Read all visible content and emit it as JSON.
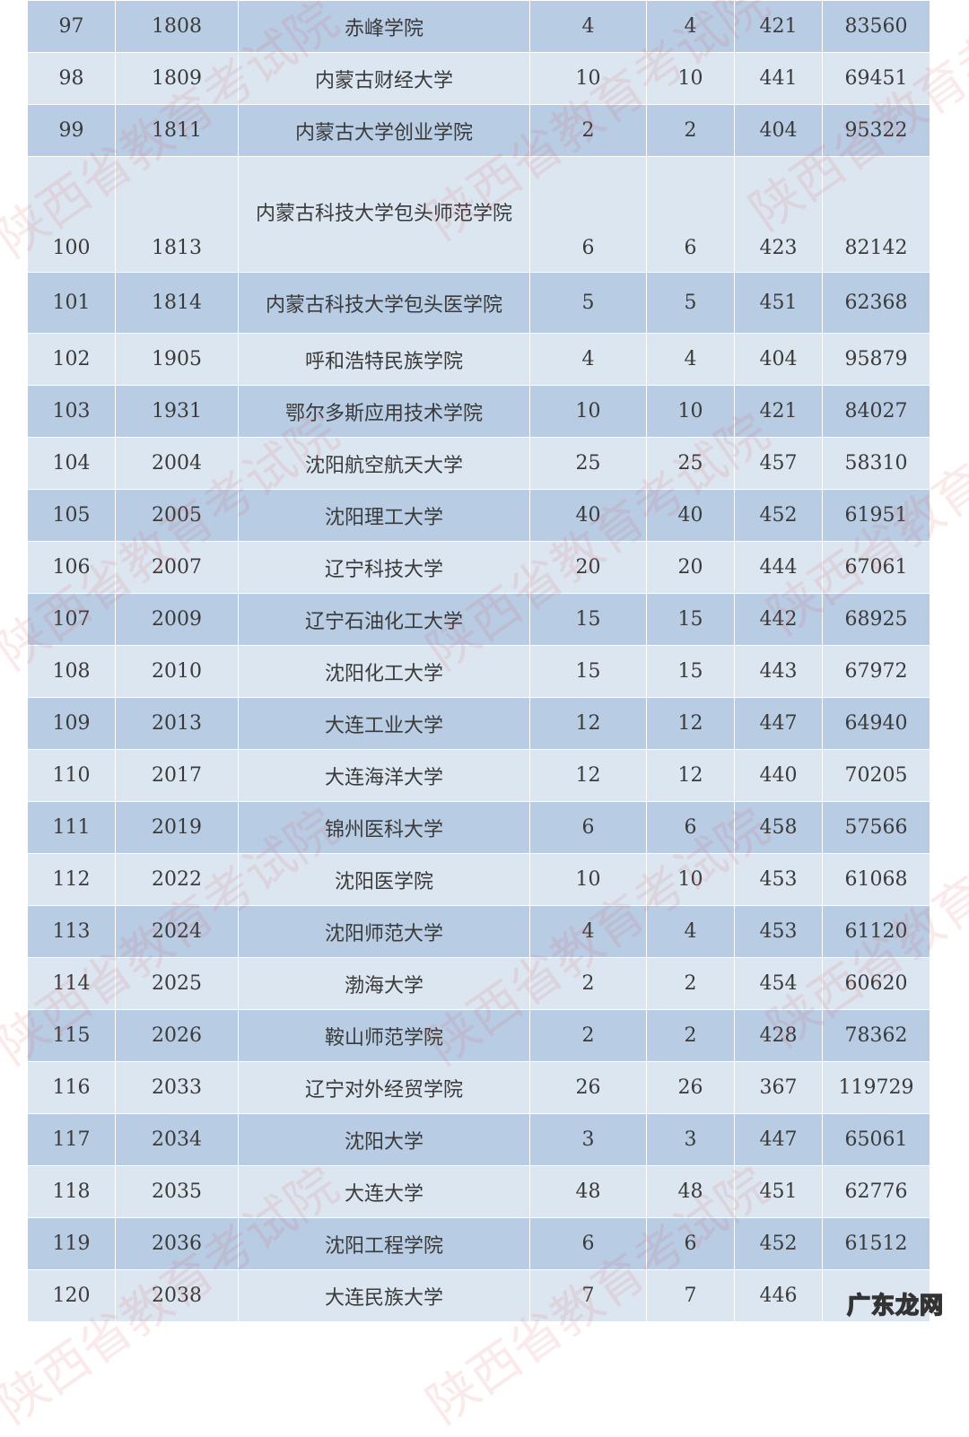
{
  "rows": [
    {
      "seq": "97",
      "code": "1808",
      "name": "赤峰学院",
      "plan": "4",
      "filed": "4",
      "score": "421",
      "rank": "83560"
    },
    {
      "seq": "98",
      "code": "1809",
      "name": "内蒙古财经大学",
      "plan": "10",
      "filed": "10",
      "score": "441",
      "rank": "69451"
    },
    {
      "seq": "99",
      "code": "1811",
      "name": "内蒙古大学创业学院",
      "plan": "2",
      "filed": "2",
      "score": "404",
      "rank": "95322"
    },
    {
      "seq": "100",
      "code": "1813",
      "name": "内蒙古科技大学包头师范学院",
      "plan": "6",
      "filed": "6",
      "score": "423",
      "rank": "82142"
    },
    {
      "seq": "101",
      "code": "1814",
      "name": "内蒙古科技大学包头医学院",
      "plan": "5",
      "filed": "5",
      "score": "451",
      "rank": "62368"
    },
    {
      "seq": "102",
      "code": "1905",
      "name": "呼和浩特民族学院",
      "plan": "4",
      "filed": "4",
      "score": "404",
      "rank": "95879"
    },
    {
      "seq": "103",
      "code": "1931",
      "name": "鄂尔多斯应用技术学院",
      "plan": "10",
      "filed": "10",
      "score": "421",
      "rank": "84027"
    },
    {
      "seq": "104",
      "code": "2004",
      "name": "沈阳航空航天大学",
      "plan": "25",
      "filed": "25",
      "score": "457",
      "rank": "58310"
    },
    {
      "seq": "105",
      "code": "2005",
      "name": "沈阳理工大学",
      "plan": "40",
      "filed": "40",
      "score": "452",
      "rank": "61951"
    },
    {
      "seq": "106",
      "code": "2007",
      "name": "辽宁科技大学",
      "plan": "20",
      "filed": "20",
      "score": "444",
      "rank": "67061"
    },
    {
      "seq": "107",
      "code": "2009",
      "name": "辽宁石油化工大学",
      "plan": "15",
      "filed": "15",
      "score": "442",
      "rank": "68925"
    },
    {
      "seq": "108",
      "code": "2010",
      "name": "沈阳化工大学",
      "plan": "15",
      "filed": "15",
      "score": "443",
      "rank": "67972"
    },
    {
      "seq": "109",
      "code": "2013",
      "name": "大连工业大学",
      "plan": "12",
      "filed": "12",
      "score": "447",
      "rank": "64940"
    },
    {
      "seq": "110",
      "code": "2017",
      "name": "大连海洋大学",
      "plan": "12",
      "filed": "12",
      "score": "440",
      "rank": "70205"
    },
    {
      "seq": "111",
      "code": "2019",
      "name": "锦州医科大学",
      "plan": "6",
      "filed": "6",
      "score": "458",
      "rank": "57566"
    },
    {
      "seq": "112",
      "code": "2022",
      "name": "沈阳医学院",
      "plan": "10",
      "filed": "10",
      "score": "453",
      "rank": "61068"
    },
    {
      "seq": "113",
      "code": "2024",
      "name": "沈阳师范大学",
      "plan": "4",
      "filed": "4",
      "score": "453",
      "rank": "61120"
    },
    {
      "seq": "114",
      "code": "2025",
      "name": "渤海大学",
      "plan": "2",
      "filed": "2",
      "score": "454",
      "rank": "60620"
    },
    {
      "seq": "115",
      "code": "2026",
      "name": "鞍山师范学院",
      "plan": "2",
      "filed": "2",
      "score": "428",
      "rank": "78362"
    },
    {
      "seq": "116",
      "code": "2033",
      "name": "辽宁对外经贸学院",
      "plan": "26",
      "filed": "26",
      "score": "367",
      "rank": "119729"
    },
    {
      "seq": "117",
      "code": "2034",
      "name": "沈阳大学",
      "plan": "3",
      "filed": "3",
      "score": "447",
      "rank": "65061"
    },
    {
      "seq": "118",
      "code": "2035",
      "name": "大连大学",
      "plan": "48",
      "filed": "48",
      "score": "451",
      "rank": "62776"
    },
    {
      "seq": "119",
      "code": "2036",
      "name": "沈阳工程学院",
      "plan": "6",
      "filed": "6",
      "score": "452",
      "rank": "61512"
    },
    {
      "seq": "120",
      "code": "2038",
      "name": "大连民族大学",
      "plan": "7",
      "filed": "7",
      "score": "446",
      "rank": ""
    }
  ],
  "watermark": "陕西省教育考试院",
  "corner_logo": "广东龙网",
  "colors": {
    "row_dark": "#b8cce4",
    "row_light": "#dce6f1",
    "watermark": "#dc5050"
  }
}
